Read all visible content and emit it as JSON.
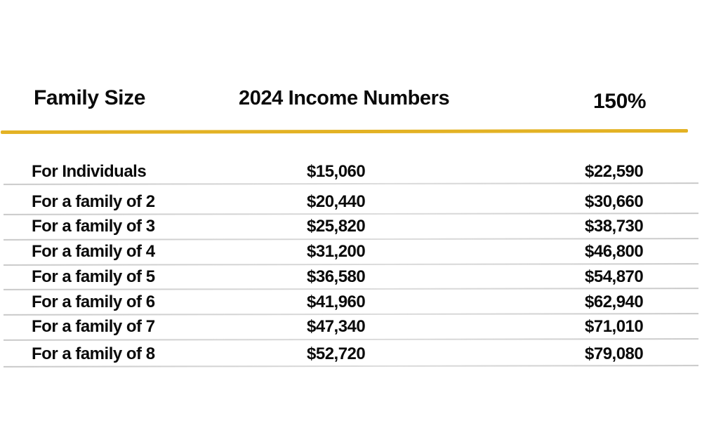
{
  "chart_data": {
    "type": "table",
    "columns": [
      "Family Size",
      "2024 Income Numbers",
      "150%"
    ],
    "rows": [
      [
        "For Individuals",
        "$15,060",
        "$22,590"
      ],
      [
        "For a family of 2",
        "$20,440",
        "$30,660"
      ],
      [
        "For a family of 3",
        "$25,820",
        "$38,730"
      ],
      [
        "For a family of 4",
        "$31,200",
        "$46,800"
      ],
      [
        "For a family of 5",
        "$36,580",
        "$54,870"
      ],
      [
        "For a family of 6",
        "$41,960",
        "$62,940"
      ],
      [
        "For a family of 7",
        "$47,340",
        "$71,010"
      ],
      [
        "For a family of 8",
        "$52,720",
        "$79,080"
      ]
    ]
  },
  "header": {
    "family_size": "Family Size",
    "income_numbers": "2024 Income Numbers",
    "percent": "150%"
  },
  "rows": [
    {
      "label": "For Individuals",
      "income_2024": "$15,060",
      "income_150": "$22,590"
    },
    {
      "label": "For a family of 2",
      "income_2024": "$20,440",
      "income_150": "$30,660"
    },
    {
      "label": "For a family of 3",
      "income_2024": "$25,820",
      "income_150": "$38,730"
    },
    {
      "label": "For a family of 4",
      "income_2024": "$31,200",
      "income_150": "$46,800"
    },
    {
      "label": "For a family of 5",
      "income_2024": "$36,580",
      "income_150": "$54,870"
    },
    {
      "label": "For a family of 6",
      "income_2024": "$41,960",
      "income_150": "$62,940"
    },
    {
      "label": "For a family of 7",
      "income_2024": "$47,340",
      "income_150": "$71,010"
    },
    {
      "label": "For a family of 8",
      "income_2024": "$52,720",
      "income_150": "$79,080"
    }
  ],
  "colors": {
    "divider_gold": "#E3B224",
    "separator_gray": "#C9C9C9",
    "text": "#0A0A0A",
    "background": "#FFFFFF"
  }
}
